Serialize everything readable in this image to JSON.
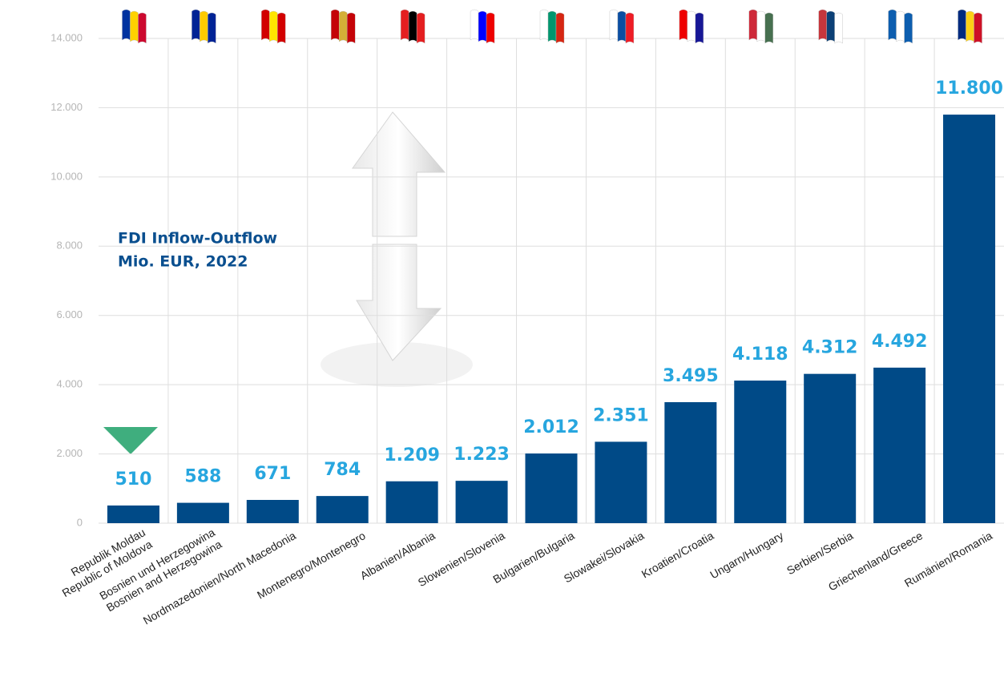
{
  "chart_data": {
    "type": "bar",
    "title": "FDI Inflow-Outflow",
    "subtitle": "Mio. EUR, 2022",
    "categories": [
      "Republik Moldau\nRepublic of Moldova",
      "Bosnien und Herzegowina\nBosnien and Herzegowina",
      "Nordmazedonien/North Macedonia",
      "Montenegro/Montenegro",
      "Albanien/Albania",
      "Slowenien/Slovenia",
      "Bulgarien/Bulgaria",
      "Slowakei/Slovakia",
      "Kroatien/Croatia",
      "Ungarn/Hungary",
      "Serbien/Serbia",
      "Griechenland/Greece",
      "Rumänien/Romania"
    ],
    "values": [
      510,
      588,
      671,
      784,
      1209,
      1223,
      2012,
      2351,
      3495,
      4118,
      4312,
      4492,
      11800
    ],
    "value_labels": [
      "510",
      "588",
      "671",
      "784",
      "1.209",
      "1.223",
      "2.012",
      "2.351",
      "3.495",
      "4.118",
      "4.312",
      "4.492",
      "11.800"
    ],
    "color": "#004a87",
    "ylim": [
      0,
      14000
    ],
    "yticks": [
      0,
      {
        "value": 2000,
        "label": "2.000"
      },
      {
        "value": 4000,
        "label": "4.000"
      },
      {
        "value": 6000,
        "label": "6.000"
      },
      {
        "value": 8000,
        "label": "8.000"
      },
      {
        "value": 10000,
        "label": "10.000"
      },
      {
        "value": 12000,
        "label": "12.000"
      },
      {
        "value": 14000,
        "label": "14.000"
      }
    ],
    "grid": true
  }
}
